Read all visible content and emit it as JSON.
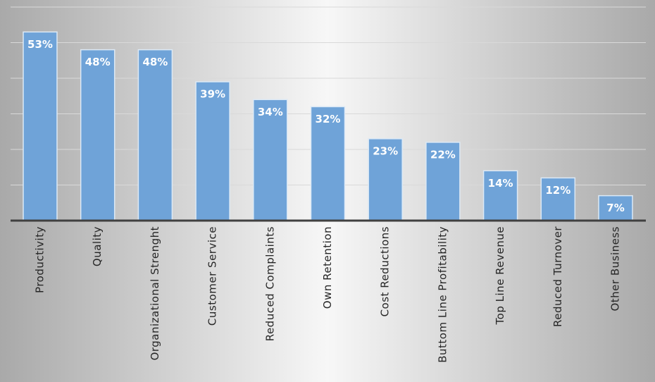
{
  "chart_data": {
    "type": "bar",
    "categories": [
      "Productivity",
      "Quality",
      "Organizational Strenght",
      "Customer Service",
      "Reduced Complaints",
      "Own Retention",
      "Cost Reductions",
      "Buttom Line Profitability",
      "Top Line Revenue",
      "Reduced Turnover",
      "Other Business"
    ],
    "values": [
      53,
      48,
      48,
      39,
      34,
      32,
      23,
      22,
      14,
      12,
      7
    ],
    "value_labels": [
      "53%",
      "48%",
      "48%",
      "39%",
      "34%",
      "32%",
      "23%",
      "22%",
      "14%",
      "12%",
      "7%"
    ],
    "color": "#6fa3d8",
    "ylim": [
      0,
      60
    ],
    "yticks": [
      0,
      10,
      20,
      30,
      40,
      50,
      60
    ],
    "grid": true
  }
}
